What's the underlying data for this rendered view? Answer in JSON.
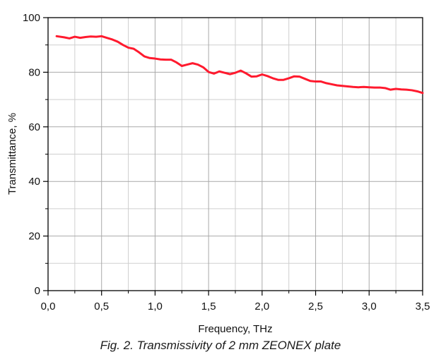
{
  "caption": "Fig. 2. Transmissivity of 2 mm ZEONEX plate",
  "chart_data": {
    "type": "line",
    "title": "",
    "xlabel": "Frequency, THz",
    "ylabel": "Transmittance, %",
    "xlim": [
      0,
      3.5
    ],
    "ylim": [
      0,
      100
    ],
    "x_ticks": [
      "0,0",
      "0,5",
      "1,0",
      "1,5",
      "2,0",
      "2,5",
      "3,0",
      "3,5"
    ],
    "y_ticks": [
      "0",
      "20",
      "40",
      "60",
      "80",
      "100"
    ],
    "grid": true,
    "series": [
      {
        "color": "#ff1a2e",
        "x": [
          0.08,
          0.15,
          0.2,
          0.25,
          0.3,
          0.35,
          0.4,
          0.45,
          0.5,
          0.55,
          0.6,
          0.65,
          0.7,
          0.75,
          0.8,
          0.85,
          0.9,
          0.95,
          1.0,
          1.05,
          1.1,
          1.15,
          1.2,
          1.25,
          1.3,
          1.35,
          1.4,
          1.45,
          1.5,
          1.55,
          1.6,
          1.65,
          1.7,
          1.75,
          1.8,
          1.85,
          1.9,
          1.95,
          2.0,
          2.05,
          2.1,
          2.15,
          2.2,
          2.25,
          2.3,
          2.35,
          2.4,
          2.45,
          2.5,
          2.55,
          2.6,
          2.65,
          2.7,
          2.75,
          2.8,
          2.85,
          2.9,
          2.95,
          3.0,
          3.05,
          3.1,
          3.15,
          3.2,
          3.25,
          3.3,
          3.35,
          3.4,
          3.45,
          3.5
        ],
        "y": [
          93.2,
          92.8,
          92.4,
          93.0,
          92.6,
          92.9,
          93.1,
          93.0,
          93.2,
          92.6,
          92.0,
          91.2,
          90.0,
          89.0,
          88.6,
          87.3,
          85.8,
          85.2,
          85.0,
          84.7,
          84.6,
          84.6,
          83.6,
          82.3,
          82.8,
          83.3,
          82.8,
          81.8,
          80.1,
          79.5,
          80.3,
          79.8,
          79.3,
          79.8,
          80.6,
          79.6,
          78.4,
          78.5,
          79.2,
          78.6,
          77.8,
          77.2,
          77.2,
          77.8,
          78.5,
          78.4,
          77.6,
          76.8,
          76.6,
          76.6,
          76.0,
          75.6,
          75.2,
          75.0,
          74.8,
          74.6,
          74.5,
          74.6,
          74.5,
          74.4,
          74.4,
          74.2,
          73.6,
          73.9,
          73.7,
          73.6,
          73.4,
          73.0,
          72.4
        ]
      }
    ]
  }
}
